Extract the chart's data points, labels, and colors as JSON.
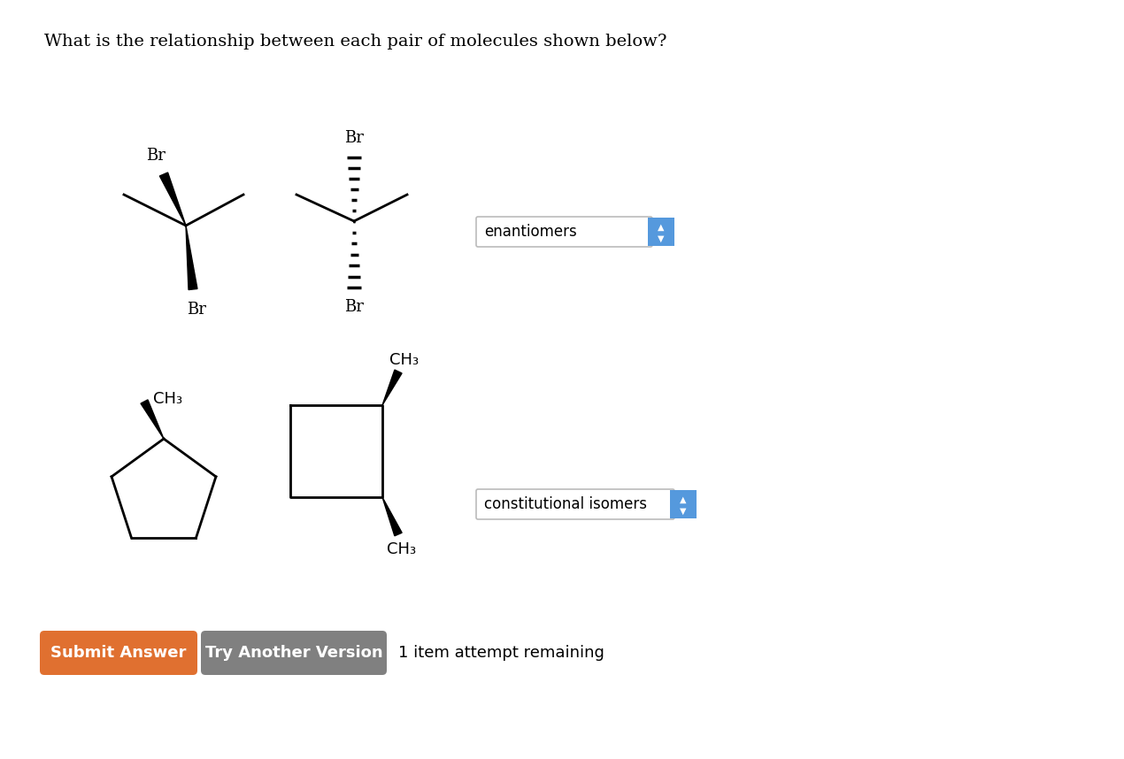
{
  "title": "What is the relationship between each pair of molecules shown below?",
  "title_fontsize": 14,
  "background_color": "#ffffff",
  "answer1": "enantiomers",
  "answer2": "constitutional isomers",
  "btn1_text": "Submit Answer",
  "btn1_color": "#e07030",
  "btn2_text": "Try Another Version",
  "btn2_color": "#808080",
  "footer_text": "1 item attempt remaining",
  "footer_fontsize": 13
}
